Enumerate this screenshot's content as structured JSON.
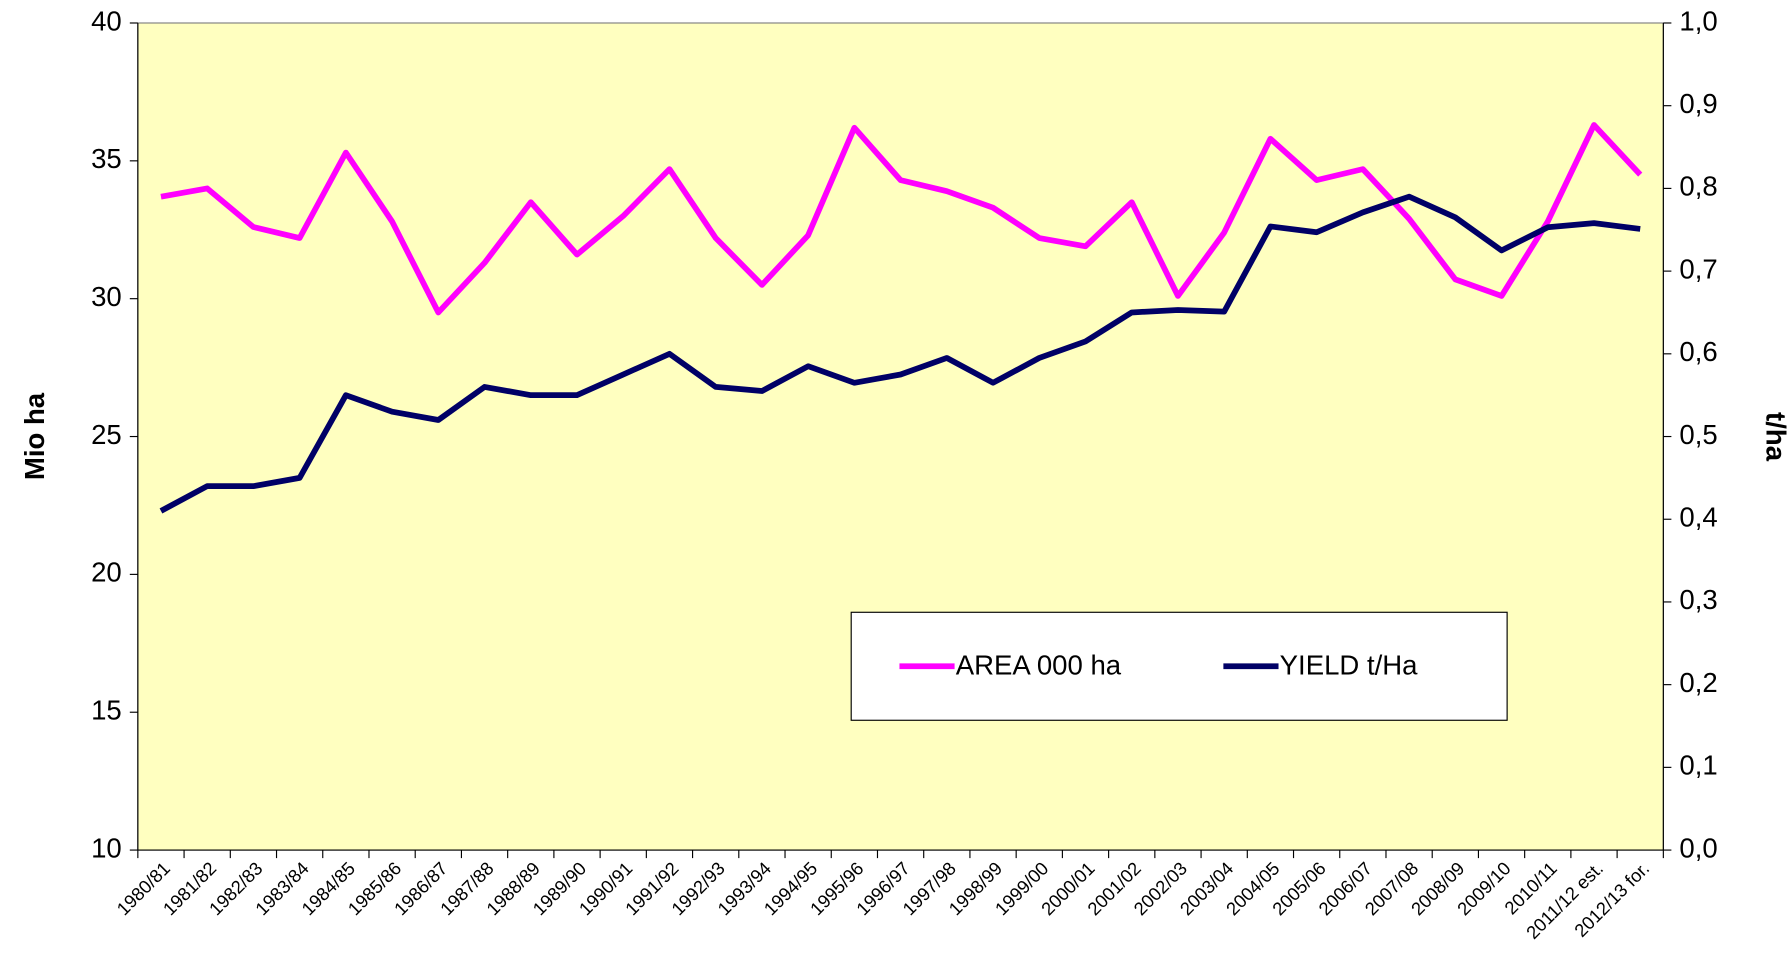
{
  "chart_data": {
    "type": "line",
    "categories": [
      "1980/81",
      "1981/82",
      "1982/83",
      "1983/84",
      "1984/85",
      "1985/86",
      "1986/87",
      "1987/88",
      "1988/89",
      "1989/90",
      "1990/91",
      "1991/92",
      "1992/93",
      "1993/94",
      "1994/95",
      "1995/96",
      "1996/97",
      "1997/98",
      "1998/99",
      "1999/00",
      "2000/01",
      "2001/02",
      "2002/03",
      "2003/04",
      "2004/05",
      "2005/06",
      "2006/07",
      "2007/08",
      "2008/09",
      "2009/10",
      "2010/11",
      "2011/12 est.",
      "2012/13 for."
    ],
    "series": [
      {
        "name": "AREA 000 ha",
        "color": "#ff00ff",
        "axis": "y",
        "values": [
          33.7,
          34.0,
          32.6,
          32.2,
          35.3,
          32.8,
          29.5,
          31.3,
          33.5,
          31.6,
          33.0,
          34.7,
          32.2,
          30.5,
          32.3,
          36.2,
          34.3,
          33.9,
          33.3,
          32.2,
          31.9,
          33.5,
          30.1,
          32.4,
          35.8,
          34.3,
          34.7,
          32.9,
          30.7,
          30.1,
          32.8,
          36.3,
          34.5
        ]
      },
      {
        "name": "YIELD t/Ha",
        "color": "#000066",
        "axis": "y2",
        "values": [
          0.41,
          0.44,
          0.44,
          0.45,
          0.55,
          0.53,
          0.52,
          0.56,
          0.55,
          0.55,
          0.575,
          0.6,
          0.56,
          0.555,
          0.585,
          0.565,
          0.575,
          0.595,
          0.565,
          0.595,
          0.615,
          0.65,
          0.653,
          0.651,
          0.754,
          0.747,
          0.771,
          0.79,
          0.765,
          0.725,
          0.753,
          0.758,
          0.751
        ]
      }
    ],
    "ylabel": "Mio ha",
    "y2label": "t/ha",
    "ylim": [
      10,
      40
    ],
    "yticks": [
      10,
      15,
      20,
      25,
      30,
      35,
      40
    ],
    "y2lim": [
      0,
      1
    ],
    "y2ticks": [
      {
        "value": 0,
        "label": "0,0"
      },
      {
        "value": 0.1,
        "label": "0,1"
      },
      {
        "value": 0.2,
        "label": "0,2"
      },
      {
        "value": 0.3,
        "label": "0,3"
      },
      {
        "value": 0.4,
        "label": "0,4"
      },
      {
        "value": 0.5,
        "label": "0,5"
      },
      {
        "value": 0.6,
        "label": "0,6"
      },
      {
        "value": 0.7,
        "label": "0,7"
      },
      {
        "value": 0.8,
        "label": "0,8"
      },
      {
        "value": 0.9,
        "label": "0,9"
      },
      {
        "value": 1,
        "label": "1,0"
      }
    ],
    "plot_background": "#ffffc0"
  }
}
